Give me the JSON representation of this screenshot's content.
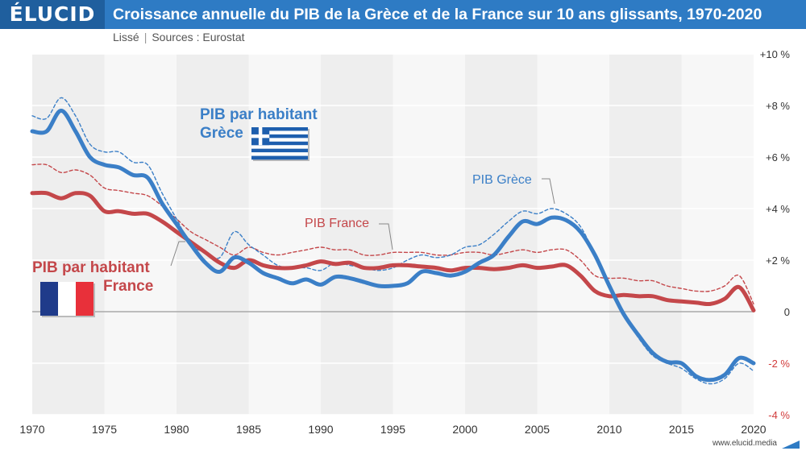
{
  "header": {
    "logo": "ÉLUCID",
    "title": "Croissance annuelle du PIB de la Grèce et de la France sur 10 ans glissants, 1970-2020",
    "subtitle_left": "Lissé",
    "subtitle_right": "Sources : Eurostat",
    "footer": "www.elucid.media"
  },
  "colors": {
    "greece": "#3b7fc7",
    "france": "#c4474a",
    "band": "#eeeeee",
    "negative_tick": "#d13b3b"
  },
  "chart_data": {
    "type": "line",
    "title": "Croissance annuelle du PIB de la Grèce et de la France sur 10 ans glissants, 1970-2020",
    "xlabel": "",
    "ylabel": "",
    "xlim": [
      1970,
      2020
    ],
    "ylim": [
      -4,
      10
    ],
    "x_ticks": [
      "1970",
      "1975",
      "1980",
      "1985",
      "1990",
      "1995",
      "2000",
      "2005",
      "2010",
      "2015",
      "2020"
    ],
    "y_ticks": [
      "+10 %",
      "+8 %",
      "+6 %",
      "+4 %",
      "+2 %",
      "0",
      "-2 %",
      "-4 %"
    ],
    "y_tick_values": [
      10,
      8,
      6,
      4,
      2,
      0,
      -2,
      -4
    ],
    "grid": "alternating vertical bands",
    "series": [
      {
        "name": "PIB par habitant Grèce",
        "style": "solid-thick",
        "x": [
          1970,
          1971,
          1972,
          1973,
          1974,
          1975,
          1976,
          1977,
          1978,
          1979,
          1980,
          1981,
          1982,
          1983,
          1984,
          1985,
          1986,
          1987,
          1988,
          1989,
          1990,
          1991,
          1992,
          1993,
          1994,
          1995,
          1996,
          1997,
          1998,
          1999,
          2000,
          2001,
          2002,
          2003,
          2004,
          2005,
          2006,
          2007,
          2008,
          2009,
          2010,
          2011,
          2012,
          2013,
          2014,
          2015,
          2016,
          2017,
          2018,
          2019,
          2020
        ],
        "y": [
          7.0,
          7.0,
          7.8,
          7.0,
          6.0,
          5.7,
          5.6,
          5.3,
          5.2,
          4.2,
          3.4,
          2.6,
          1.9,
          1.55,
          2.1,
          1.9,
          1.5,
          1.3,
          1.1,
          1.25,
          1.05,
          1.35,
          1.3,
          1.15,
          1.0,
          1.0,
          1.1,
          1.55,
          1.5,
          1.4,
          1.55,
          1.9,
          2.2,
          2.9,
          3.5,
          3.4,
          3.65,
          3.55,
          3.1,
          2.2,
          1.0,
          -0.1,
          -0.9,
          -1.6,
          -1.95,
          -2.0,
          -2.5,
          -2.65,
          -2.45,
          -1.8,
          -2.0
        ]
      },
      {
        "name": "PIB Grèce",
        "style": "dashed",
        "x": [
          1970,
          1971,
          1972,
          1973,
          1974,
          1975,
          1976,
          1977,
          1978,
          1979,
          1980,
          1981,
          1982,
          1983,
          1984,
          1985,
          1986,
          1987,
          1988,
          1989,
          1990,
          1991,
          1992,
          1993,
          1994,
          1995,
          1996,
          1997,
          1998,
          1999,
          2000,
          2001,
          2002,
          2003,
          2004,
          2005,
          2006,
          2007,
          2008,
          2009,
          2010,
          2011,
          2012,
          2013,
          2014,
          2015,
          2016,
          2017,
          2018,
          2019,
          2020
        ],
        "y": [
          7.6,
          7.5,
          8.3,
          7.6,
          6.5,
          6.2,
          6.2,
          5.8,
          5.7,
          4.6,
          3.6,
          2.6,
          2.3,
          2.1,
          3.1,
          2.6,
          2.2,
          1.8,
          1.7,
          1.7,
          1.6,
          1.9,
          1.8,
          1.7,
          1.6,
          1.7,
          2.0,
          2.2,
          2.1,
          2.2,
          2.5,
          2.6,
          3.0,
          3.5,
          3.9,
          3.8,
          4.0,
          3.8,
          3.3,
          2.2,
          1.0,
          -0.1,
          -1.0,
          -1.7,
          -2.0,
          -2.2,
          -2.6,
          -2.8,
          -2.6,
          -2.0,
          -2.3
        ]
      },
      {
        "name": "PIB par habitant France",
        "style": "solid-thick",
        "x": [
          1970,
          1971,
          1972,
          1973,
          1974,
          1975,
          1976,
          1977,
          1978,
          1979,
          1980,
          1981,
          1982,
          1983,
          1984,
          1985,
          1986,
          1987,
          1988,
          1989,
          1990,
          1991,
          1992,
          1993,
          1994,
          1995,
          1996,
          1997,
          1998,
          1999,
          2000,
          2001,
          2002,
          2003,
          2004,
          2005,
          2006,
          2007,
          2008,
          2009,
          2010,
          2011,
          2012,
          2013,
          2014,
          2015,
          2016,
          2017,
          2018,
          2019,
          2020
        ],
        "y": [
          4.6,
          4.6,
          4.4,
          4.6,
          4.5,
          3.9,
          3.9,
          3.8,
          3.8,
          3.5,
          3.1,
          2.7,
          2.3,
          1.9,
          1.7,
          2.0,
          1.8,
          1.7,
          1.7,
          1.8,
          1.95,
          1.85,
          1.9,
          1.7,
          1.7,
          1.8,
          1.8,
          1.75,
          1.7,
          1.6,
          1.7,
          1.7,
          1.65,
          1.7,
          1.8,
          1.7,
          1.75,
          1.8,
          1.4,
          0.8,
          0.6,
          0.65,
          0.6,
          0.6,
          0.45,
          0.4,
          0.35,
          0.3,
          0.5,
          0.95,
          0.05
        ]
      },
      {
        "name": "PIB France",
        "style": "dashed",
        "x": [
          1970,
          1971,
          1972,
          1973,
          1974,
          1975,
          1976,
          1977,
          1978,
          1979,
          1980,
          1981,
          1982,
          1983,
          1984,
          1985,
          1986,
          1987,
          1988,
          1989,
          1990,
          1991,
          1992,
          1993,
          1994,
          1995,
          1996,
          1997,
          1998,
          1999,
          2000,
          2001,
          2002,
          2003,
          2004,
          2005,
          2006,
          2007,
          2008,
          2009,
          2010,
          2011,
          2012,
          2013,
          2014,
          2015,
          2016,
          2017,
          2018,
          2019,
          2020
        ],
        "y": [
          5.7,
          5.7,
          5.4,
          5.5,
          5.3,
          4.8,
          4.7,
          4.6,
          4.5,
          4.1,
          3.6,
          3.1,
          2.8,
          2.5,
          2.2,
          2.5,
          2.3,
          2.2,
          2.3,
          2.4,
          2.5,
          2.4,
          2.4,
          2.2,
          2.2,
          2.3,
          2.3,
          2.3,
          2.2,
          2.2,
          2.3,
          2.3,
          2.2,
          2.3,
          2.4,
          2.3,
          2.4,
          2.4,
          2.0,
          1.4,
          1.3,
          1.3,
          1.2,
          1.2,
          1.0,
          0.9,
          0.8,
          0.8,
          1.0,
          1.4,
          0.3
        ]
      }
    ],
    "annotations": [
      {
        "text_lines": [
          "PIB par habitant",
          "Grèce"
        ],
        "series": "greece",
        "flag": "greece"
      },
      {
        "text_lines": [
          "PIB par habitant",
          "France"
        ],
        "series": "france",
        "flag": "france"
      },
      {
        "text": "PIB Grèce",
        "series": "greece"
      },
      {
        "text": "PIB France",
        "series": "france"
      }
    ]
  }
}
